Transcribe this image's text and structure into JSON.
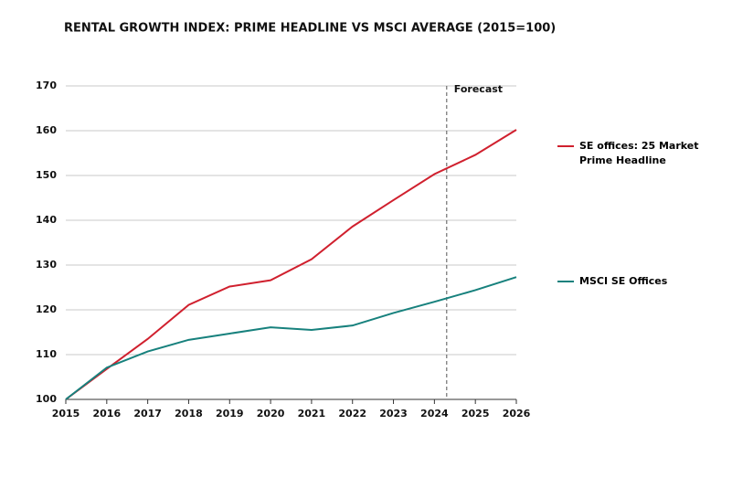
{
  "chart_data": {
    "type": "line",
    "title": "RENTAL GROWTH INDEX: PRIME HEADLINE VS MSCI AVERAGE (2015=100)",
    "x": [
      2015,
      2016,
      2017,
      2018,
      2019,
      2020,
      2021,
      2022,
      2023,
      2024,
      2025,
      2026
    ],
    "series": [
      {
        "name": "SE offices: 25 Market Prime Headline",
        "color": "#d0202e",
        "values": [
          100,
          106.8,
          113.5,
          121.1,
          125.2,
          126.6,
          131.3,
          138.6,
          144.5,
          150.3,
          154.6,
          160.2
        ]
      },
      {
        "name": "MSCI SE Offices",
        "color": "#17817d",
        "values": [
          100,
          107.1,
          110.7,
          113.3,
          114.7,
          116.1,
          115.5,
          116.5,
          119.3,
          121.8,
          124.4,
          127.3
        ]
      }
    ],
    "xlim": [
      2015,
      2026
    ],
    "xticks": [
      2015,
      2016,
      2017,
      2018,
      2019,
      2020,
      2021,
      2022,
      2023,
      2024,
      2025,
      2026
    ],
    "ylim": [
      100,
      170
    ],
    "yticks": [
      100,
      110,
      120,
      130,
      140,
      150,
      160,
      170
    ],
    "grid": true,
    "forecast_x": 2024.3,
    "forecast_label": "Forecast",
    "legend": "right"
  }
}
